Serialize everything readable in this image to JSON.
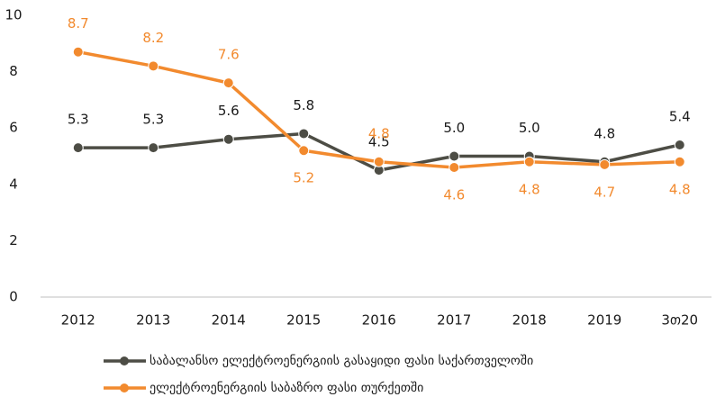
{
  "chart_data": {
    "type": "line",
    "categories": [
      "2012",
      "2013",
      "2014",
      "2015",
      "2016",
      "2017",
      "2018",
      "2019",
      "3თ20"
    ],
    "series": [
      {
        "name": "საბალანსო ელექტროენერგიის გასაყიდი ფასი საქართველოში",
        "color": "#4d4d45",
        "values": [
          5.3,
          5.3,
          5.6,
          5.8,
          4.5,
          5.0,
          5.0,
          4.8,
          5.4
        ],
        "value_labels": [
          "5.3",
          "5.3",
          "5.6",
          "5.8",
          "4.5",
          "5.0",
          "5.0",
          "4.8",
          "5.4"
        ]
      },
      {
        "name": "ელექტროენერგიის საბაზრო ფასი თურქეთში",
        "color": "#f28a2e",
        "values": [
          8.7,
          8.2,
          7.6,
          5.2,
          4.8,
          4.6,
          4.8,
          4.7,
          4.8
        ],
        "value_labels": [
          "8.7",
          "8.2",
          "7.6",
          "5.2",
          "4.8",
          "4.6",
          "4.8",
          "4.7",
          "4.8"
        ]
      }
    ],
    "ylim": [
      0,
      10
    ],
    "yticks": [
      0,
      2,
      4,
      6,
      8,
      10
    ],
    "grid": false,
    "legend": "bottom"
  }
}
